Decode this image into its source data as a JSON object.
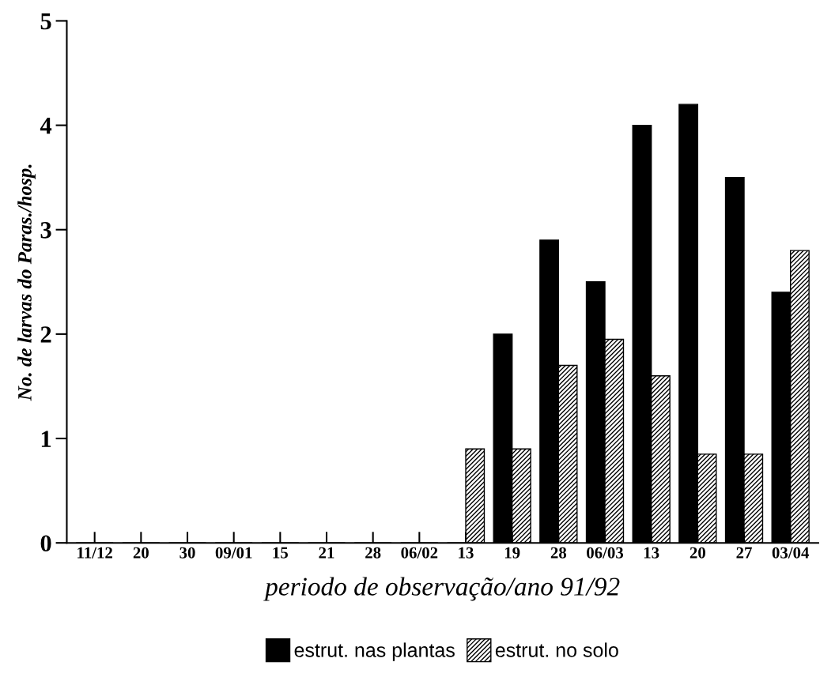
{
  "chart_data": {
    "type": "bar",
    "xlabel": "periodo de observação/ano 91/92",
    "ylabel": "No. de larvas do Paras./hosp.",
    "categories": [
      "11/12",
      "20",
      "30",
      "09/01",
      "15",
      "21",
      "28",
      "06/02",
      "13",
      "19",
      "28",
      "06/03",
      "13",
      "20",
      "27",
      "03/04"
    ],
    "series": [
      {
        "name": "estrut. nas plantas",
        "color": "#000000",
        "values": [
          0,
          0,
          0,
          0,
          0,
          0,
          0,
          0,
          0,
          2.0,
          2.9,
          2.5,
          4.0,
          4.2,
          3.5,
          2.4
        ]
      },
      {
        "name": "estrut. no solo",
        "color": "#000000",
        "values": [
          0,
          0,
          0,
          0,
          0,
          0,
          0,
          0,
          0.9,
          0.9,
          1.7,
          1.95,
          1.6,
          0.85,
          0.85,
          2.8
        ]
      }
    ],
    "ylim": [
      0,
      5
    ],
    "yticks": [
      0,
      1,
      2,
      3,
      4,
      5
    ],
    "grid": false,
    "legend": "bottom"
  }
}
